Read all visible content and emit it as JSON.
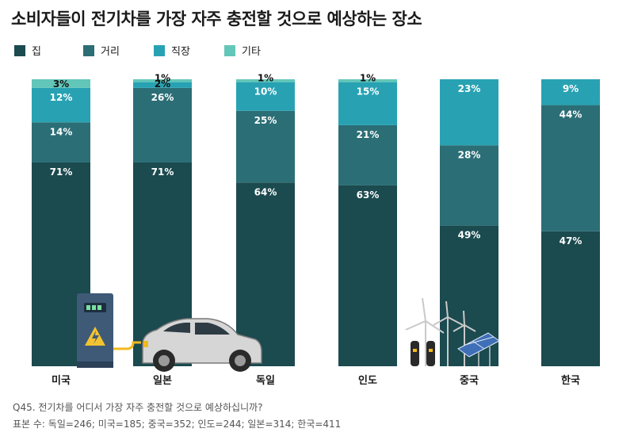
{
  "chart_data": {
    "type": "bar",
    "stacked": true,
    "title": "소비자들이 전기차를 가장 자주 충전할 것으로 예상하는 장소",
    "categories": [
      "미국",
      "일본",
      "독일",
      "인도",
      "중국",
      "한국"
    ],
    "series": [
      {
        "name": "집",
        "values": [
          71,
          71,
          64,
          63,
          49,
          47
        ],
        "color": "#1b4a4f"
      },
      {
        "name": "거리",
        "values": [
          14,
          26,
          25,
          21,
          28,
          44
        ],
        "color": "#2b6e76"
      },
      {
        "name": "직장",
        "values": [
          12,
          2,
          10,
          15,
          23,
          9
        ],
        "color": "#28a2b3"
      },
      {
        "name": "기타",
        "values": [
          3,
          1,
          1,
          1,
          0,
          0
        ],
        "color": "#62c6b9"
      }
    ],
    "data_labels": [
      [
        "71%",
        "71%",
        "64%",
        "63%",
        "49%",
        "47%"
      ],
      [
        "14%",
        "26%",
        "25%",
        "21%",
        "28%",
        "44%"
      ],
      [
        "12%",
        "2%",
        "10%",
        "15%",
        "23%",
        "9%"
      ],
      [
        "3%",
        "1%",
        "1%",
        "1%",
        "",
        ""
      ]
    ],
    "ylim": [
      0,
      100
    ],
    "grid": false,
    "legend_position": "top-left"
  },
  "footnote": {
    "question": "Q45. 전기차를 어디서 가장 자주 충전할 것으로 예상하십니까?",
    "sample": "표본 수: 독일=246; 미국=185; 중국=352; 인도=244; 일본=314; 한국=411"
  },
  "illustrations": [
    "charging-station-icon",
    "electric-car-icon",
    "wind-turbine-icon",
    "solar-panel-icon"
  ]
}
